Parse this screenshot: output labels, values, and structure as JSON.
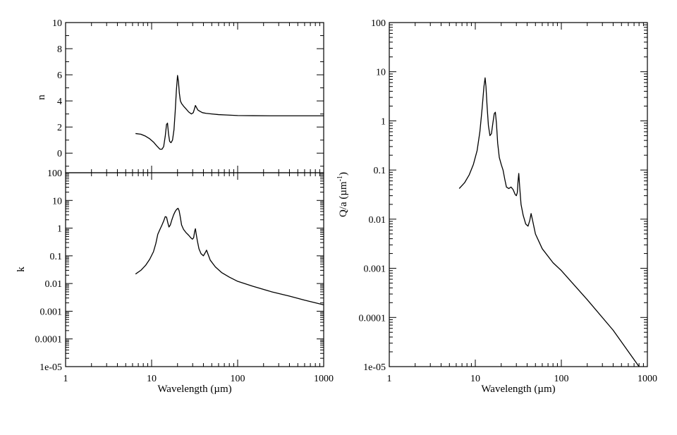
{
  "chart_data": [
    {
      "type": "line",
      "id": "n-panel",
      "xlabel": "",
      "ylabel": "n",
      "xscale": "log",
      "yscale": "linear",
      "xlim": [
        1,
        1000
      ],
      "ylim": [
        -1.5,
        10
      ],
      "yticks": [
        0,
        2,
        4,
        6,
        8,
        10
      ],
      "ytick_labels": [
        "0",
        "2",
        "4",
        "6",
        "8",
        "10"
      ],
      "xtick_labels": [],
      "series": [
        {
          "x": [
            6.5,
            7.5,
            8.5,
            9.5,
            10.5,
            11.5,
            12.5,
            13.2,
            13.8,
            14.4,
            14.9,
            15.3,
            15.7,
            16.2,
            16.8,
            17.5,
            18.2,
            18.8,
            19.4,
            20.0,
            20.5,
            21.0,
            21.6,
            22.3,
            23.5,
            25.0,
            27.0,
            29.0,
            30.5,
            31.5,
            32.3,
            33.2,
            34.5,
            36.5,
            39.0,
            43.0,
            50.0,
            60.0,
            75.0,
            100.0,
            150.0,
            250.0,
            400.0,
            600.0,
            1000.0
          ],
          "y": [
            1.5,
            1.45,
            1.3,
            1.1,
            0.85,
            0.55,
            0.3,
            0.3,
            0.5,
            1.3,
            2.2,
            2.3,
            1.5,
            0.9,
            0.8,
            1.0,
            1.8,
            3.2,
            4.8,
            5.95,
            5.5,
            4.6,
            4.0,
            3.8,
            3.6,
            3.4,
            3.15,
            3.0,
            3.1,
            3.4,
            3.65,
            3.5,
            3.3,
            3.2,
            3.1,
            3.05,
            3.0,
            2.95,
            2.92,
            2.88,
            2.87,
            2.86,
            2.86,
            2.86,
            2.86
          ]
        }
      ]
    },
    {
      "type": "line",
      "id": "k-panel",
      "xlabel": "Wavelength (µm)",
      "ylabel": "k",
      "xscale": "log",
      "yscale": "log",
      "xlim": [
        1,
        1000
      ],
      "ylim": [
        1e-05,
        100
      ],
      "xtick_labels": [
        "1",
        "10",
        "100",
        "1000"
      ],
      "ytick_labels": [
        "1e-05",
        "0.0001",
        "0.001",
        "0.01",
        "0.1",
        "1",
        "10",
        "100"
      ],
      "series": [
        {
          "x": [
            6.5,
            7.5,
            8.5,
            9.5,
            10.5,
            11.2,
            11.8,
            12.5,
            13.2,
            13.8,
            14.4,
            14.9,
            15.4,
            15.9,
            16.5,
            17.2,
            18.0,
            18.8,
            19.6,
            20.3,
            20.9,
            21.5,
            22.3,
            23.5,
            25.0,
            27.0,
            28.5,
            29.8,
            30.8,
            31.6,
            32.3,
            33.0,
            34.0,
            35.5,
            37.5,
            40.0,
            42.0,
            43.5,
            45.0,
            48.0,
            55.0,
            65.0,
            80.0,
            100.0,
            150.0,
            250.0,
            400.0,
            600.0,
            1000.0
          ],
          "y": [
            0.022,
            0.03,
            0.045,
            0.075,
            0.14,
            0.28,
            0.6,
            0.9,
            1.3,
            1.8,
            2.6,
            2.5,
            1.6,
            1.1,
            1.3,
            2.0,
            3.0,
            4.0,
            4.8,
            5.2,
            4.2,
            2.6,
            1.3,
            0.9,
            0.7,
            0.55,
            0.45,
            0.4,
            0.45,
            0.75,
            0.95,
            0.6,
            0.35,
            0.18,
            0.12,
            0.1,
            0.13,
            0.16,
            0.12,
            0.07,
            0.04,
            0.025,
            0.017,
            0.012,
            0.008,
            0.005,
            0.0035,
            0.0025,
            0.0017
          ]
        }
      ]
    },
    {
      "type": "line",
      "id": "q-panel",
      "xlabel": "Wavelength (µm)",
      "ylabel": "Q/a (µm",
      "ylabel_sup": "-1",
      "ylabel_tail": ")",
      "xscale": "log",
      "yscale": "log",
      "xlim": [
        1,
        1000
      ],
      "ylim": [
        1e-05,
        100
      ],
      "xtick_labels": [
        "1",
        "10",
        "100",
        "1000"
      ],
      "ytick_labels": [
        "1e-05",
        "0.0001",
        "0.001",
        "0.01",
        "0.1",
        "1",
        "10",
        "100"
      ],
      "series": [
        {
          "x": [
            6.5,
            7.5,
            8.5,
            9.5,
            10.5,
            11.3,
            12.0,
            12.6,
            13.0,
            13.3,
            13.7,
            14.2,
            14.8,
            15.4,
            16.0,
            16.6,
            17.1,
            17.6,
            18.2,
            19.0,
            20.0,
            21.0,
            22.0,
            23.0,
            24.5,
            26.0,
            27.5,
            29.0,
            30.0,
            30.8,
            31.4,
            32.0,
            32.8,
            34.0,
            36.0,
            38.5,
            41.0,
            43.0,
            44.5,
            46.0,
            50.0,
            60.0,
            80.0,
            100.0,
            200.0,
            400.0,
            800.0
          ],
          "y": [
            0.042,
            0.055,
            0.08,
            0.13,
            0.25,
            0.6,
            1.8,
            5.0,
            7.5,
            5.0,
            2.0,
            0.8,
            0.5,
            0.55,
            0.9,
            1.4,
            1.5,
            0.9,
            0.35,
            0.18,
            0.13,
            0.1,
            0.065,
            0.045,
            0.042,
            0.045,
            0.04,
            0.032,
            0.03,
            0.035,
            0.06,
            0.085,
            0.045,
            0.02,
            0.012,
            0.008,
            0.0072,
            0.0095,
            0.013,
            0.01,
            0.005,
            0.0025,
            0.0013,
            0.0009,
            0.00023,
            5.5e-05,
            1e-05
          ]
        }
      ]
    }
  ]
}
